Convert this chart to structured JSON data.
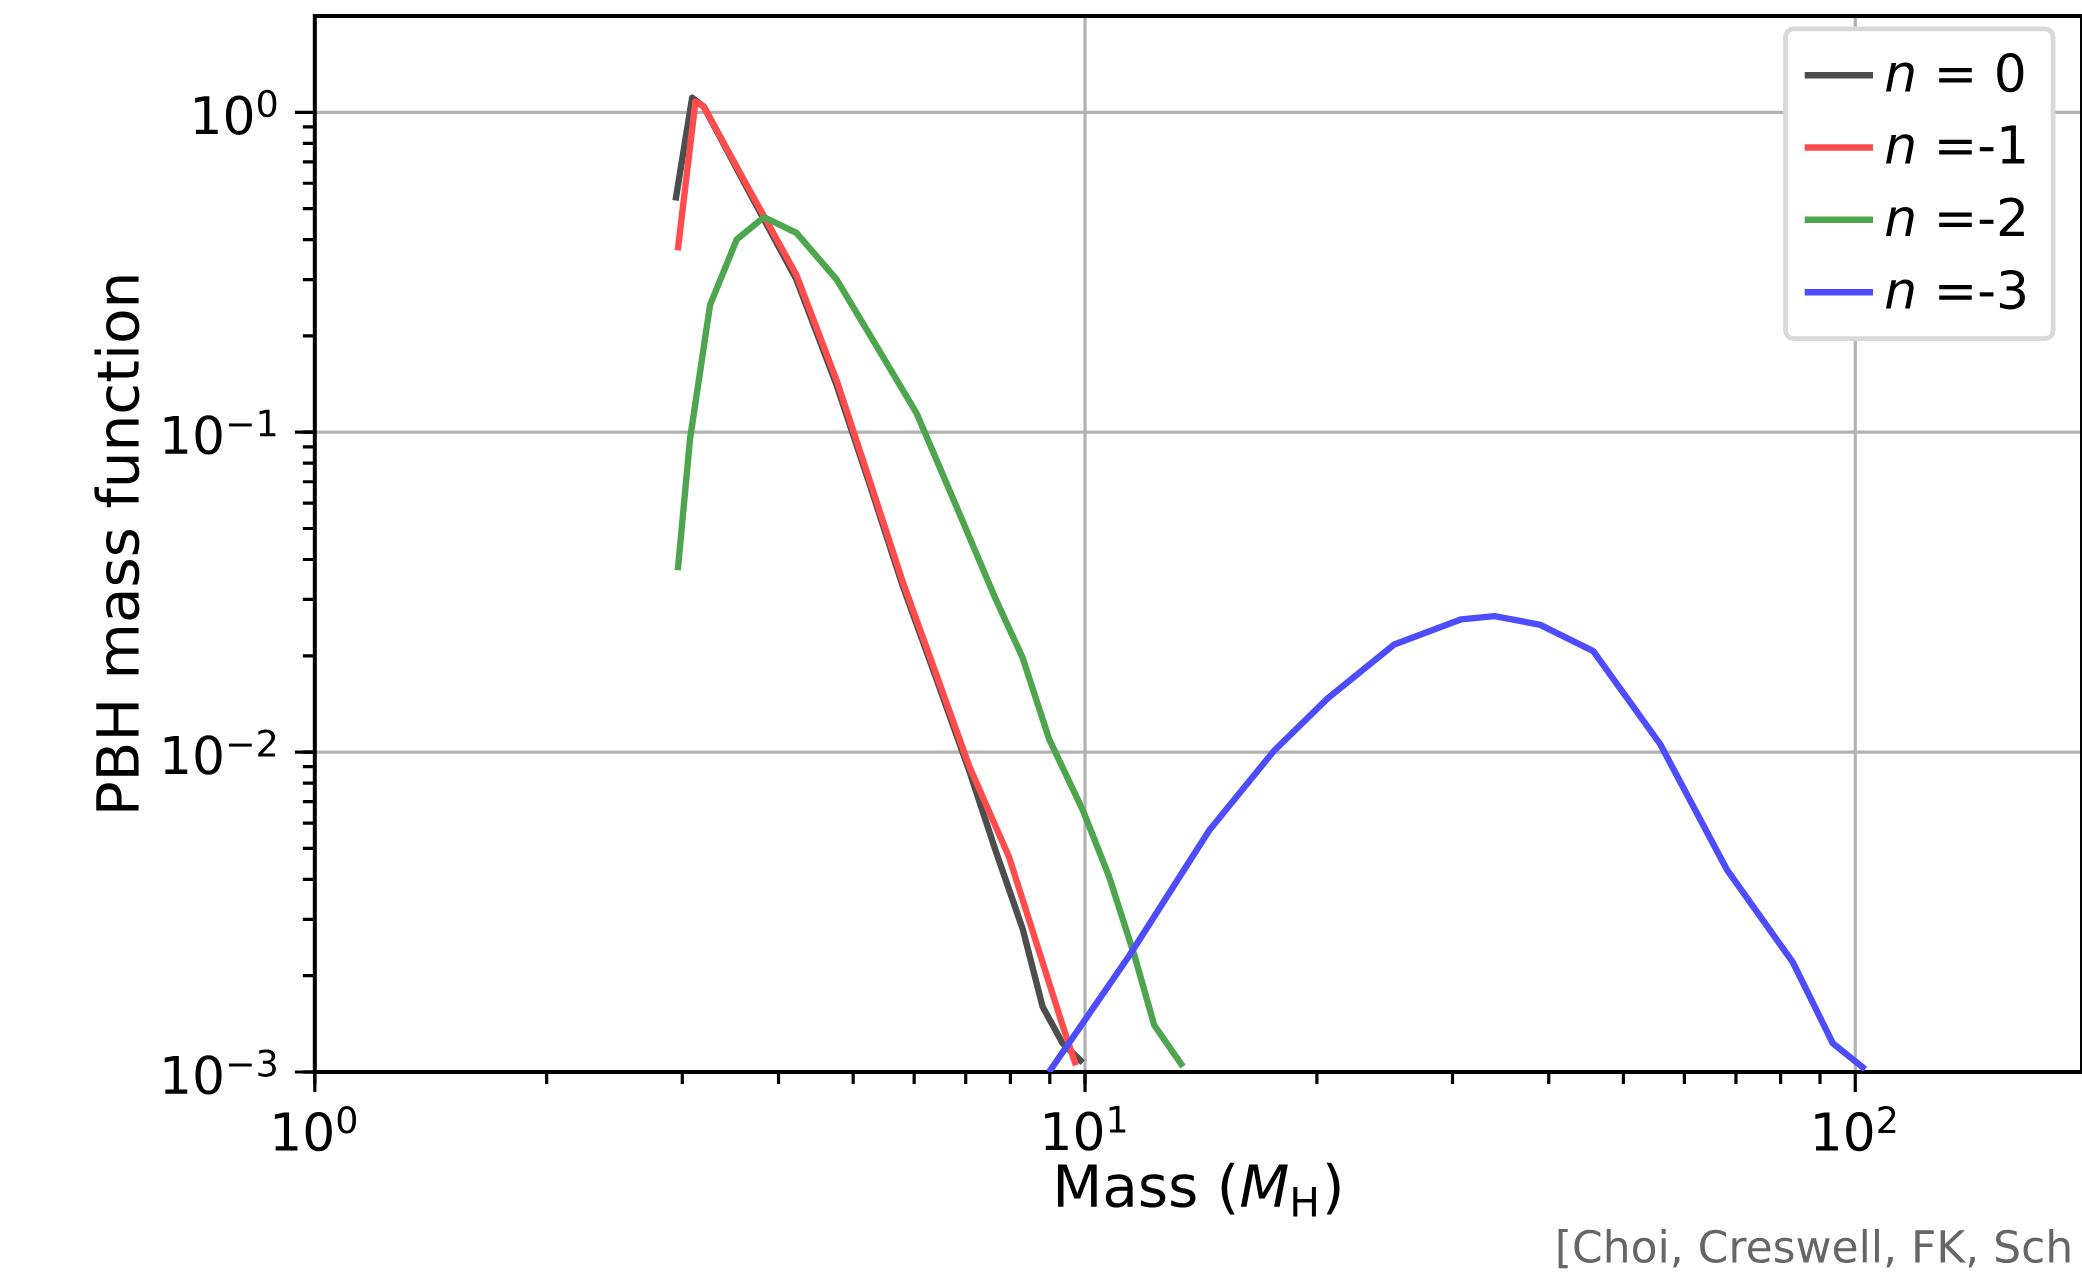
{
  "chart_data": {
    "type": "line",
    "xlabel": "Mass (*M*$_{H}$)",
    "ylabel": "PBH mass function",
    "log": "xy",
    "grid": true,
    "legend": "top right",
    "xlim": [
      1,
      197
    ],
    "ylim": [
      0.001,
      2
    ],
    "xticks": [
      {
        "value": 1,
        "label": "10$^{0}$"
      },
      {
        "value": 10,
        "label": "10$^{1}$"
      },
      {
        "value": 100,
        "label": "10$^{2}$"
      }
    ],
    "yticks": [
      {
        "value": 0.001,
        "label": "10$^{−3}$"
      },
      {
        "value": 0.01,
        "label": "10$^{−2}$"
      },
      {
        "value": 0.1,
        "label": "10$^{−1}$"
      },
      {
        "value": 1,
        "label": "10$^{0}$"
      }
    ],
    "annotations": [
      "[Choi, Creswell, FK, Sch"
    ],
    "series": [
      {
        "name": "*n* =  0",
        "color": "#4d4d4d",
        "x": [
          2.94,
          3.09,
          3.2,
          3.6,
          4.22,
          4.76,
          5.26,
          5.8,
          6.41,
          7.08,
          7.66,
          8.3,
          8.81,
          9.35,
          9.93
        ],
        "values": [
          0.53,
          1.11,
          1.04,
          0.61,
          0.3,
          0.14,
          0.068,
          0.033,
          0.017,
          0.0087,
          0.0049,
          0.0028,
          0.0016,
          0.00123,
          0.00107
        ]
      },
      {
        "name": "*n* =-1",
        "color": "#ff4d4d",
        "x": [
          2.96,
          3.12,
          3.2,
          3.6,
          4.22,
          4.76,
          5.26,
          5.8,
          6.41,
          7.08,
          7.97,
          8.81,
          9.35,
          9.73
        ],
        "values": [
          0.37,
          1.08,
          1.04,
          0.62,
          0.31,
          0.145,
          0.07,
          0.034,
          0.0175,
          0.009,
          0.0047,
          0.0022,
          0.0014,
          0.00105
        ]
      },
      {
        "name": "*n* =-2",
        "color": "#4da64d",
        "x": [
          2.96,
          3.07,
          3.26,
          3.53,
          3.83,
          4.22,
          4.76,
          5.36,
          6.04,
          6.8,
          7.66,
          8.3,
          8.98,
          9.93,
          10.74,
          11.6,
          12.3,
          13.4
        ],
        "values": [
          0.037,
          0.095,
          0.25,
          0.4,
          0.47,
          0.42,
          0.3,
          0.186,
          0.115,
          0.059,
          0.03,
          0.0197,
          0.011,
          0.0066,
          0.0041,
          0.0023,
          0.0014,
          0.00104
        ]
      },
      {
        "name": "*n* =-3",
        "color": "#4d4dff",
        "x": [
          8.98,
          11.4,
          14.5,
          17.6,
          20.7,
          25.2,
          30.8,
          34.0,
          39.0,
          45.7,
          55.8,
          68.1,
          83.0,
          93.5,
          103
        ],
        "values": [
          0.001,
          0.0023,
          0.0057,
          0.0101,
          0.0148,
          0.0217,
          0.026,
          0.0266,
          0.025,
          0.0207,
          0.0106,
          0.0043,
          0.0022,
          0.00123,
          0.00102
        ]
      }
    ]
  }
}
